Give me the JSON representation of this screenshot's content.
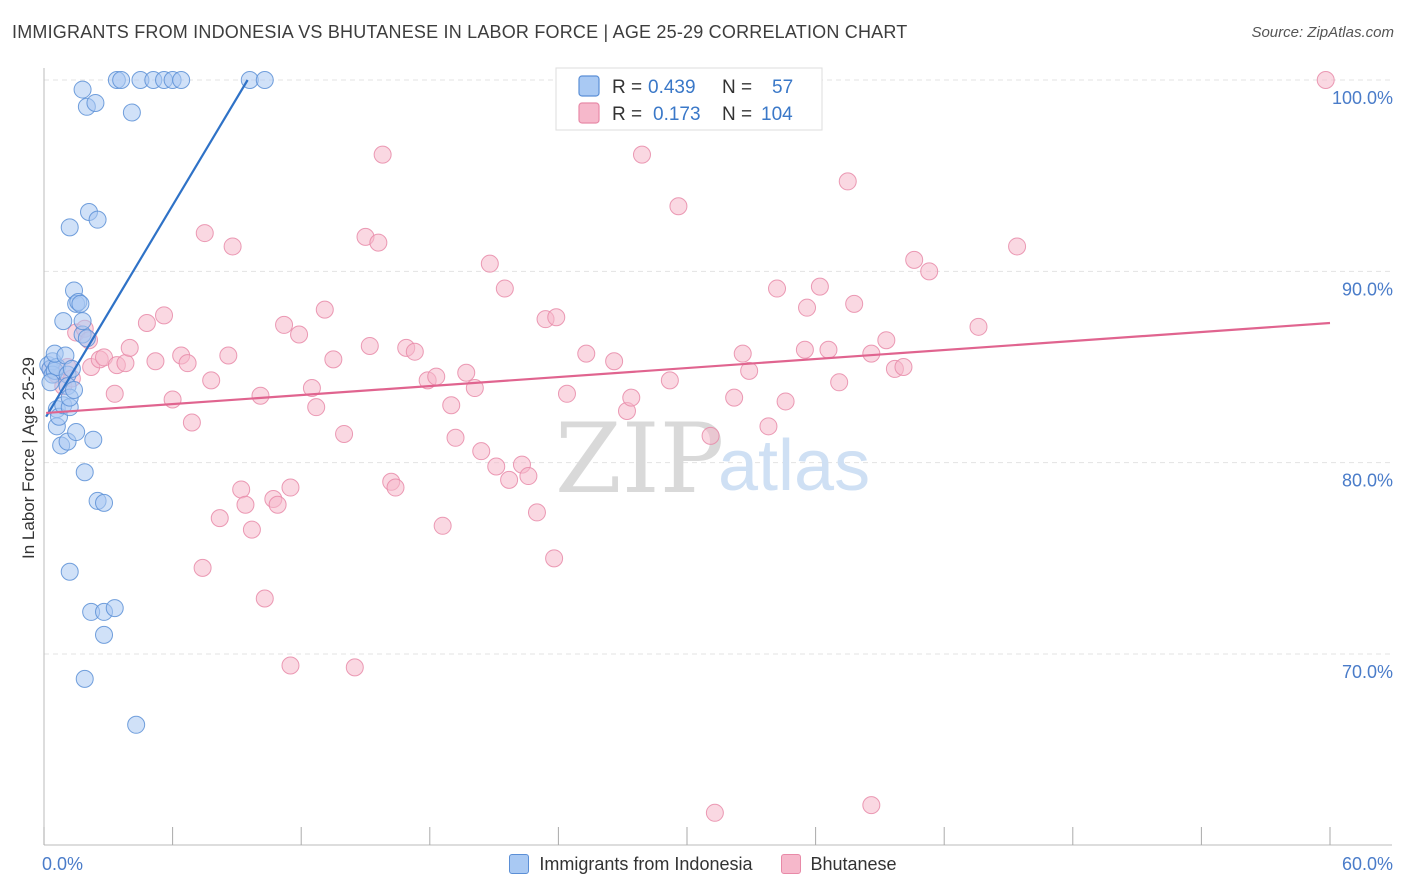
{
  "title": "IMMIGRANTS FROM INDONESIA VS BHUTANESE IN LABOR FORCE | AGE 25-29 CORRELATION CHART",
  "source": "Source: ZipAtlas.com",
  "watermark": {
    "zip": "ZIP",
    "atlas": "atlas"
  },
  "legend_stats": [
    {
      "r_label": "R =",
      "r_value": "0.439",
      "n_label": "N =",
      "n_value": "57"
    },
    {
      "r_label": "R =",
      "r_value": "0.173",
      "n_label": "N =",
      "n_value": "104"
    }
  ],
  "bottom_legend": [
    {
      "label": "Immigrants from Indonesia"
    },
    {
      "label": "Bhutanese"
    }
  ],
  "colors": {
    "indonesia_fill": "#a9c9f3",
    "indonesia_stroke": "#5b8fd6",
    "indonesia_line": "#2f72c7",
    "bhutanese_fill": "#f6b8cb",
    "bhutanese_stroke": "#e88aa8",
    "bhutanese_line": "#e0648f",
    "value_text": "#3a78c8",
    "grid": "#e3e3e3"
  },
  "chart_data": {
    "type": "scatter",
    "title": "IMMIGRANTS FROM INDONESIA VS BHUTANESE IN LABOR FORCE | AGE 25-29 CORRELATION CHART",
    "xlabel": "",
    "ylabel": "In Labor Force | Age 25-29",
    "xlim": [
      0,
      60
    ],
    "ylim": [
      60,
      100.5
    ],
    "x_tick_labels": [
      {
        "value": 0,
        "label": "0.0%"
      },
      {
        "value": 60,
        "label": "60.0%"
      }
    ],
    "x_minor_ticks": [
      6,
      12,
      18,
      24,
      30,
      36,
      42,
      48,
      54
    ],
    "y_tick_labels": [
      {
        "value": 100,
        "label": "100.0%"
      },
      {
        "value": 90,
        "label": "90.0%"
      },
      {
        "value": 80,
        "label": "80.0%"
      },
      {
        "value": 70,
        "label": "70.0%"
      }
    ],
    "series": [
      {
        "name": "Immigrants from Indonesia",
        "R": 0.439,
        "N": 57,
        "trend": {
          "x0": 0.1,
          "y0": 82.4,
          "x1": 9.5,
          "y1": 100.0
        },
        "points": [
          [
            0.2,
            85.1
          ],
          [
            0.3,
            84.9
          ],
          [
            0.4,
            85.3
          ],
          [
            0.4,
            84.6
          ],
          [
            0.5,
            84.8
          ],
          [
            0.6,
            85.0
          ],
          [
            0.3,
            84.2
          ],
          [
            0.5,
            85.7
          ],
          [
            0.6,
            82.8
          ],
          [
            0.6,
            81.9
          ],
          [
            0.7,
            82.4
          ],
          [
            0.8,
            80.9
          ],
          [
            0.9,
            87.4
          ],
          [
            0.9,
            83.0
          ],
          [
            1.0,
            85.6
          ],
          [
            1.1,
            84.6
          ],
          [
            1.1,
            84.0
          ],
          [
            1.1,
            81.1
          ],
          [
            1.2,
            82.9
          ],
          [
            1.2,
            83.4
          ],
          [
            1.2,
            92.3
          ],
          [
            1.2,
            74.3
          ],
          [
            1.3,
            84.9
          ],
          [
            1.4,
            83.8
          ],
          [
            1.4,
            89.0
          ],
          [
            1.5,
            88.3
          ],
          [
            1.5,
            81.6
          ],
          [
            1.6,
            88.4
          ],
          [
            1.7,
            88.3
          ],
          [
            1.8,
            86.7
          ],
          [
            1.8,
            87.4
          ],
          [
            1.8,
            99.5
          ],
          [
            1.9,
            79.5
          ],
          [
            1.9,
            68.7
          ],
          [
            2.0,
            86.5
          ],
          [
            2.0,
            98.6
          ],
          [
            2.1,
            93.1
          ],
          [
            2.2,
            72.2
          ],
          [
            2.3,
            81.2
          ],
          [
            2.4,
            98.8
          ],
          [
            2.5,
            92.7
          ],
          [
            2.5,
            78.0
          ],
          [
            2.8,
            77.9
          ],
          [
            2.8,
            72.2
          ],
          [
            2.8,
            71.0
          ],
          [
            3.3,
            72.4
          ],
          [
            3.4,
            100.0
          ],
          [
            3.6,
            100.0
          ],
          [
            4.1,
            98.3
          ],
          [
            4.5,
            100.0
          ],
          [
            4.3,
            66.3
          ],
          [
            5.1,
            100.0
          ],
          [
            5.6,
            100.0
          ],
          [
            6.0,
            100.0
          ],
          [
            6.4,
            100.0
          ],
          [
            9.6,
            100.0
          ],
          [
            10.3,
            100.0
          ]
        ]
      },
      {
        "name": "Bhutanese",
        "R": 0.173,
        "N": 104,
        "trend": {
          "x0": 0.1,
          "y0": 82.6,
          "x1": 60.0,
          "y1": 87.3
        },
        "points": [
          [
            0.3,
            84.9
          ],
          [
            0.6,
            84.6
          ],
          [
            0.9,
            84.0
          ],
          [
            1.1,
            85.0
          ],
          [
            1.3,
            84.4
          ],
          [
            1.5,
            86.8
          ],
          [
            1.9,
            87.0
          ],
          [
            2.1,
            86.4
          ],
          [
            2.2,
            85.0
          ],
          [
            2.6,
            85.4
          ],
          [
            2.8,
            85.5
          ],
          [
            3.3,
            83.6
          ],
          [
            3.4,
            85.1
          ],
          [
            3.8,
            85.2
          ],
          [
            4.0,
            86.0
          ],
          [
            4.8,
            87.3
          ],
          [
            5.2,
            85.3
          ],
          [
            5.6,
            87.7
          ],
          [
            6.0,
            83.3
          ],
          [
            6.4,
            85.6
          ],
          [
            6.7,
            85.2
          ],
          [
            6.9,
            82.1
          ],
          [
            7.4,
            74.5
          ],
          [
            7.5,
            92.0
          ],
          [
            7.8,
            84.3
          ],
          [
            8.2,
            77.1
          ],
          [
            8.6,
            85.6
          ],
          [
            8.8,
            91.3
          ],
          [
            9.2,
            78.6
          ],
          [
            9.4,
            77.8
          ],
          [
            9.7,
            76.5
          ],
          [
            10.1,
            83.5
          ],
          [
            10.3,
            72.9
          ],
          [
            10.7,
            78.1
          ],
          [
            10.9,
            77.8
          ],
          [
            11.2,
            87.2
          ],
          [
            11.5,
            78.7
          ],
          [
            11.9,
            86.7
          ],
          [
            11.5,
            69.4
          ],
          [
            12.5,
            83.9
          ],
          [
            12.7,
            82.9
          ],
          [
            13.1,
            88.0
          ],
          [
            13.5,
            85.4
          ],
          [
            14.0,
            81.5
          ],
          [
            14.5,
            69.3
          ],
          [
            15.0,
            91.8
          ],
          [
            15.2,
            86.1
          ],
          [
            15.6,
            91.5
          ],
          [
            15.8,
            96.1
          ],
          [
            16.2,
            79.0
          ],
          [
            16.4,
            78.7
          ],
          [
            16.9,
            86.0
          ],
          [
            17.3,
            85.8
          ],
          [
            17.9,
            84.3
          ],
          [
            18.3,
            84.5
          ],
          [
            18.6,
            76.7
          ],
          [
            19.0,
            83.0
          ],
          [
            19.2,
            81.3
          ],
          [
            19.7,
            84.7
          ],
          [
            20.1,
            83.9
          ],
          [
            20.4,
            80.6
          ],
          [
            20.8,
            90.4
          ],
          [
            21.1,
            79.8
          ],
          [
            21.5,
            89.1
          ],
          [
            21.7,
            79.1
          ],
          [
            22.3,
            79.9
          ],
          [
            22.6,
            79.3
          ],
          [
            23.0,
            77.4
          ],
          [
            23.4,
            87.5
          ],
          [
            23.9,
            87.6
          ],
          [
            23.8,
            75.0
          ],
          [
            24.4,
            83.6
          ],
          [
            25.3,
            85.7
          ],
          [
            26.6,
            85.3
          ],
          [
            27.2,
            82.7
          ],
          [
            27.4,
            83.4
          ],
          [
            27.9,
            96.1
          ],
          [
            29.2,
            84.3
          ],
          [
            29.6,
            93.4
          ],
          [
            31.1,
            81.4
          ],
          [
            31.3,
            61.7
          ],
          [
            32.2,
            83.4
          ],
          [
            32.6,
            85.7
          ],
          [
            32.9,
            84.8
          ],
          [
            33.8,
            81.9
          ],
          [
            34.2,
            89.1
          ],
          [
            34.6,
            83.2
          ],
          [
            35.5,
            85.9
          ],
          [
            35.6,
            88.1
          ],
          [
            36.2,
            89.2
          ],
          [
            36.6,
            85.9
          ],
          [
            37.1,
            84.2
          ],
          [
            37.5,
            94.7
          ],
          [
            37.8,
            88.3
          ],
          [
            38.6,
            62.1
          ],
          [
            38.6,
            85.7
          ],
          [
            39.3,
            86.4
          ],
          [
            39.7,
            84.9
          ],
          [
            40.1,
            85.0
          ],
          [
            40.6,
            90.6
          ],
          [
            41.3,
            90.0
          ],
          [
            43.6,
            87.1
          ],
          [
            45.4,
            91.3
          ],
          [
            59.8,
            100.0
          ]
        ]
      }
    ]
  }
}
